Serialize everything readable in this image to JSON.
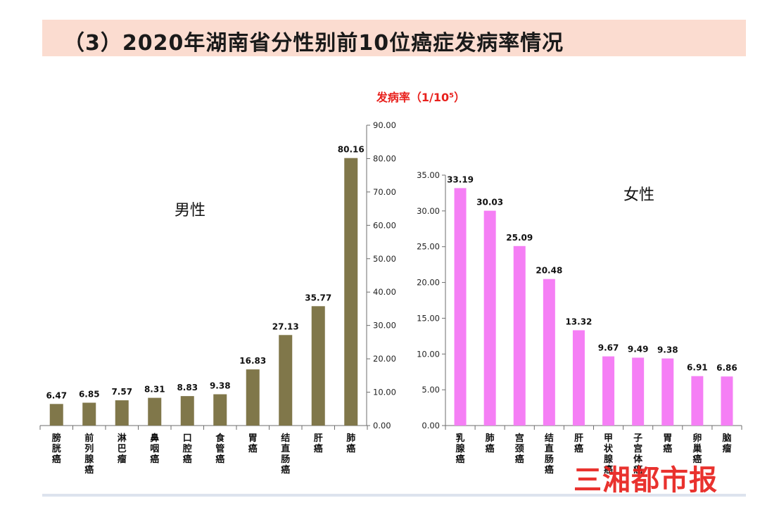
{
  "header": {
    "title": "（3）2020年湖南省分性别前10位癌症发病率情况",
    "unit_label": "发病率（1/10⁵）"
  },
  "watermark_text": "三湘都市报",
  "colors": {
    "male_bar": "#80774a",
    "female_bar": "#f57ff5",
    "unit": "#e8211d"
  },
  "chart_data": [
    {
      "type": "bar",
      "title": "男性",
      "categories": [
        "膀胱癌",
        "前列腺癌",
        "淋巴瘤",
        "鼻咽癌",
        "口腔癌",
        "食管癌",
        "胃癌",
        "结直肠癌",
        "肝癌",
        "肺癌"
      ],
      "values": [
        6.47,
        6.85,
        7.57,
        8.31,
        8.83,
        9.38,
        16.83,
        27.13,
        35.77,
        80.16
      ],
      "value_labels": [
        "6.47",
        "6.85",
        "7.57",
        "8.31",
        "8.83",
        "9.38",
        "16.83",
        "27.13",
        "35.77",
        "80.16"
      ],
      "ylim": [
        0,
        90
      ],
      "yticks": [
        "0.00",
        "10.00",
        "20.00",
        "30.00",
        "40.00",
        "50.00",
        "60.00",
        "70.00",
        "80.00",
        "90.00"
      ],
      "yaxis_side": "right",
      "grid": false
    },
    {
      "type": "bar",
      "title": "女性",
      "categories": [
        "乳腺癌",
        "肺癌",
        "宫颈癌",
        "结直肠癌",
        "肝癌",
        "甲状腺癌",
        "子宫体癌",
        "胃癌",
        "卵巢癌",
        "脑瘤"
      ],
      "values": [
        33.19,
        30.03,
        25.09,
        20.48,
        13.32,
        9.67,
        9.49,
        9.38,
        6.91,
        6.86
      ],
      "value_labels": [
        "33.19",
        "30.03",
        "25.09",
        "20.48",
        "13.32",
        "9.67",
        "9.49",
        "9.38",
        "6.91",
        "6.86"
      ],
      "ylim": [
        0,
        35
      ],
      "yticks": [
        "0.00",
        "5.00",
        "10.00",
        "15.00",
        "20.00",
        "25.00",
        "30.00",
        "35.00"
      ],
      "yaxis_side": "left",
      "grid": false
    }
  ]
}
